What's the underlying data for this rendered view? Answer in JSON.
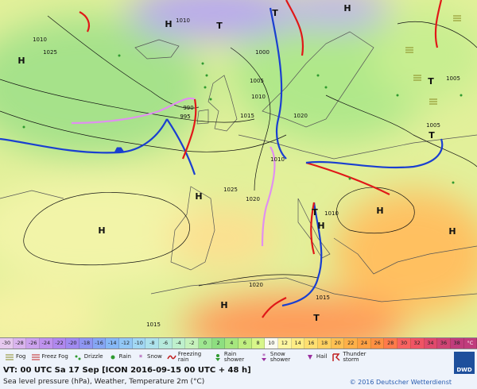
{
  "map": {
    "letters": [
      "H",
      "T",
      "H",
      "T",
      "H",
      "T",
      "T",
      "H",
      "H",
      "H",
      "H",
      "H",
      "T",
      "T",
      "H"
    ],
    "isobars": [
      "1010",
      "1025",
      "1000",
      "1005",
      "1010",
      "1015",
      "1020",
      "990",
      "995",
      "1005",
      "1005",
      "1025",
      "1020",
      "1010",
      "1010",
      "1020",
      "1015",
      "1015",
      "1010"
    ]
  },
  "scale": {
    "values": [
      -30,
      -28,
      -26,
      -24,
      -22,
      -20,
      -18,
      -16,
      -14,
      -12,
      -10,
      -8,
      -6,
      -4,
      -2,
      0,
      2,
      4,
      6,
      8,
      10,
      12,
      14,
      16,
      18,
      20,
      22,
      24,
      26,
      28,
      30,
      32,
      34,
      36,
      38
    ],
    "colors": [
      "#e6c8ee",
      "#dab4ee",
      "#cca2ee",
      "#bf92ee",
      "#b088ee",
      "#a08af0",
      "#8f96f2",
      "#86a6f4",
      "#86b8f6",
      "#92c8f6",
      "#a2d8f4",
      "#ade2ec",
      "#b6eadc",
      "#bef0cc",
      "#c6f2bc",
      "#9ee690",
      "#8ede80",
      "#a6e67e",
      "#c0ee80",
      "#d8f68a",
      "#fbfbf0",
      "#fff6a0",
      "#ffec84",
      "#ffdf70",
      "#ffd060",
      "#ffc052",
      "#ffb048",
      "#ffa042",
      "#ff9042",
      "#ff7a4a",
      "#f86260",
      "#f05464",
      "#e04a6c",
      "#d04474",
      "#c03c7c"
    ],
    "unit": "°C"
  },
  "legend": [
    "Fog",
    "Freez Fog",
    "Drizzle",
    "Rain",
    "Snow",
    "Freezing rain",
    "Rain shower",
    "Snow shower",
    "Hail",
    "Thunder storm"
  ],
  "footer": {
    "valid_time": "VT: 00 UTC Sa  17 Sep [ICON 2016-09-15  00 UTC + 48 h]",
    "subtitle": "Sea level pressure (hPa), Weather, Temperature 2m (°C)",
    "copyright": "© 2016 Deutscher Wetterdienst",
    "logo": "DWD"
  }
}
